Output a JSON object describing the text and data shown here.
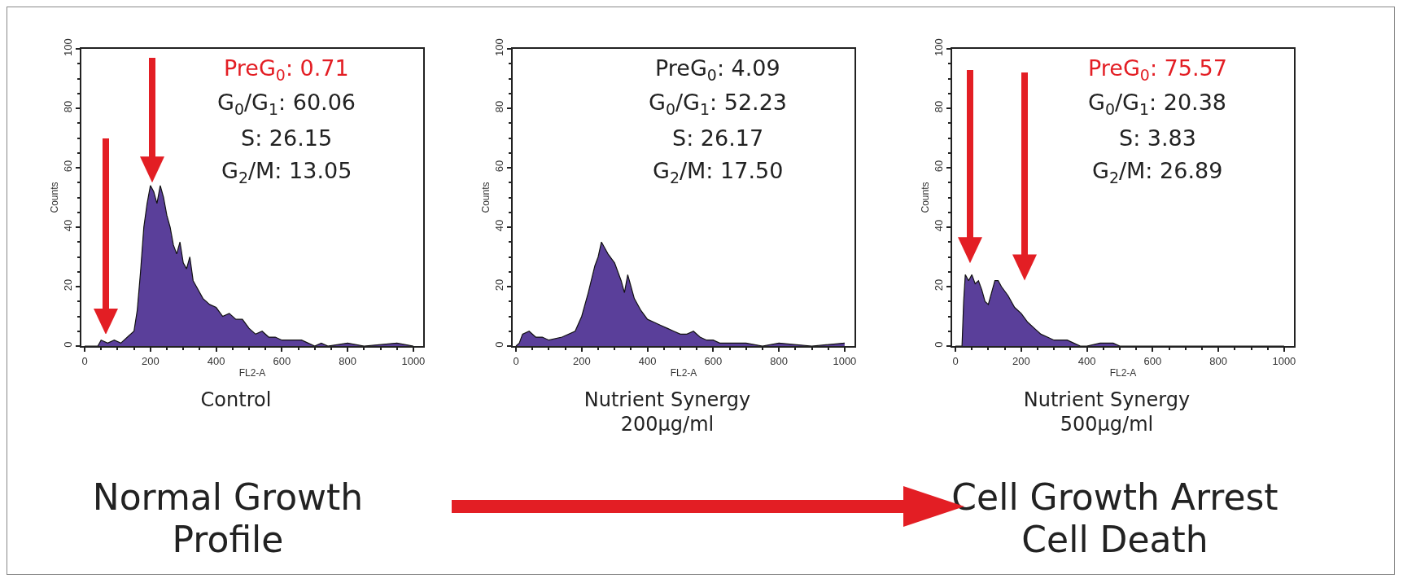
{
  "chart_data": [
    {
      "type": "area",
      "title": "Control",
      "xlabel": "FL2-A",
      "ylabel": "Counts",
      "annotations": [
        "PreG$_{0}$: 0.71",
        "G$_{0}$/G$_{1}$: 60.06",
        "S: 26.15",
        "G$_{2}$/M: 13.05",
        "Normal Growth Profile"
      ],
      "series": [
        {
          "color": "#5a3f9a",
          "x": [
            0,
            40,
            50,
            70,
            90,
            110,
            130,
            150,
            160,
            170,
            180,
            190,
            200,
            210,
            220,
            230,
            240,
            250,
            260,
            270,
            280,
            290,
            300,
            310,
            320,
            330,
            340,
            360,
            380,
            400,
            420,
            440,
            460,
            480,
            500,
            520,
            540,
            560,
            580,
            600,
            620,
            640,
            660,
            680,
            700,
            720,
            740,
            800,
            850,
            950,
            1000
          ],
          "values": [
            0,
            0,
            2,
            1,
            2,
            1,
            3,
            5,
            12,
            25,
            40,
            48,
            54,
            52,
            48,
            54,
            50,
            44,
            40,
            34,
            31,
            35,
            28,
            26,
            30,
            22,
            20,
            16,
            14,
            13,
            10,
            11,
            9,
            9,
            6,
            4,
            5,
            3,
            3,
            2,
            2,
            2,
            2,
            1,
            0,
            1,
            0,
            1,
            0,
            1,
            0
          ]
        }
      ],
      "xlim": [
        -10,
        1030
      ],
      "ylim": [
        0,
        100
      ],
      "xticks": [
        0,
        200,
        400,
        600,
        800,
        1000
      ],
      "yticks": [
        0,
        20,
        40,
        60,
        80,
        100
      ]
    },
    {
      "type": "area",
      "title": "Nutrient Synergy\n200µg/ml",
      "xlabel": "FL2-A",
      "ylabel": "Counts",
      "annotations": [
        "PreG$_{0}$: 4.09",
        "G$_{0}$/G$_{1}$: 52.23",
        "S: 26.17",
        "G$_{2}$/M: 17.50"
      ],
      "series": [
        {
          "color": "#5a3f9a",
          "x": [
            0,
            10,
            20,
            40,
            60,
            80,
            100,
            140,
            180,
            200,
            220,
            240,
            250,
            260,
            270,
            280,
            300,
            320,
            330,
            340,
            350,
            360,
            380,
            400,
            420,
            440,
            460,
            480,
            500,
            520,
            540,
            560,
            580,
            600,
            620,
            640,
            660,
            700,
            750,
            800,
            900,
            1000
          ],
          "values": [
            0,
            1,
            4,
            5,
            3,
            3,
            2,
            3,
            5,
            10,
            18,
            27,
            30,
            35,
            33,
            31,
            28,
            22,
            18,
            24,
            20,
            16,
            12,
            9,
            8,
            7,
            6,
            5,
            4,
            4,
            5,
            3,
            2,
            2,
            1,
            1,
            1,
            1,
            0,
            1,
            0,
            1
          ]
        }
      ],
      "xlim": [
        -10,
        1030
      ],
      "ylim": [
        0,
        100
      ],
      "xticks": [
        0,
        200,
        400,
        600,
        800,
        1000
      ],
      "yticks": [
        0,
        20,
        40,
        60,
        80,
        100
      ]
    },
    {
      "type": "area",
      "title": "Nutrient Synergy\n500µg/ml",
      "xlabel": "FL2-A",
      "ylabel": "Counts",
      "annotations": [
        "PreG$_{0}$: 75.57",
        "G$_{0}$/G$_{1}$: 20.38",
        "S: 3.83",
        "G$_{2}$/M: 26.89",
        "Cell Growth Arrest\nCell Death"
      ],
      "series": [
        {
          "color": "#5a3f9a",
          "x": [
            0,
            20,
            25,
            30,
            40,
            50,
            60,
            70,
            80,
            90,
            100,
            110,
            120,
            130,
            140,
            160,
            180,
            200,
            220,
            240,
            260,
            280,
            300,
            320,
            340,
            360,
            380,
            400,
            440,
            480,
            500,
            1000
          ],
          "values": [
            0,
            0,
            15,
            24,
            22,
            24,
            21,
            22,
            19,
            15,
            14,
            18,
            22,
            22,
            20,
            17,
            13,
            11,
            8,
            6,
            4,
            3,
            2,
            2,
            2,
            1,
            0,
            0,
            1,
            1,
            0,
            0
          ]
        }
      ],
      "xlim": [
        -10,
        1030
      ],
      "ylim": [
        0,
        100
      ],
      "xticks": [
        0,
        200,
        400,
        600,
        800,
        1000
      ],
      "yticks": [
        0,
        20,
        40,
        60,
        80,
        100
      ]
    }
  ]
}
